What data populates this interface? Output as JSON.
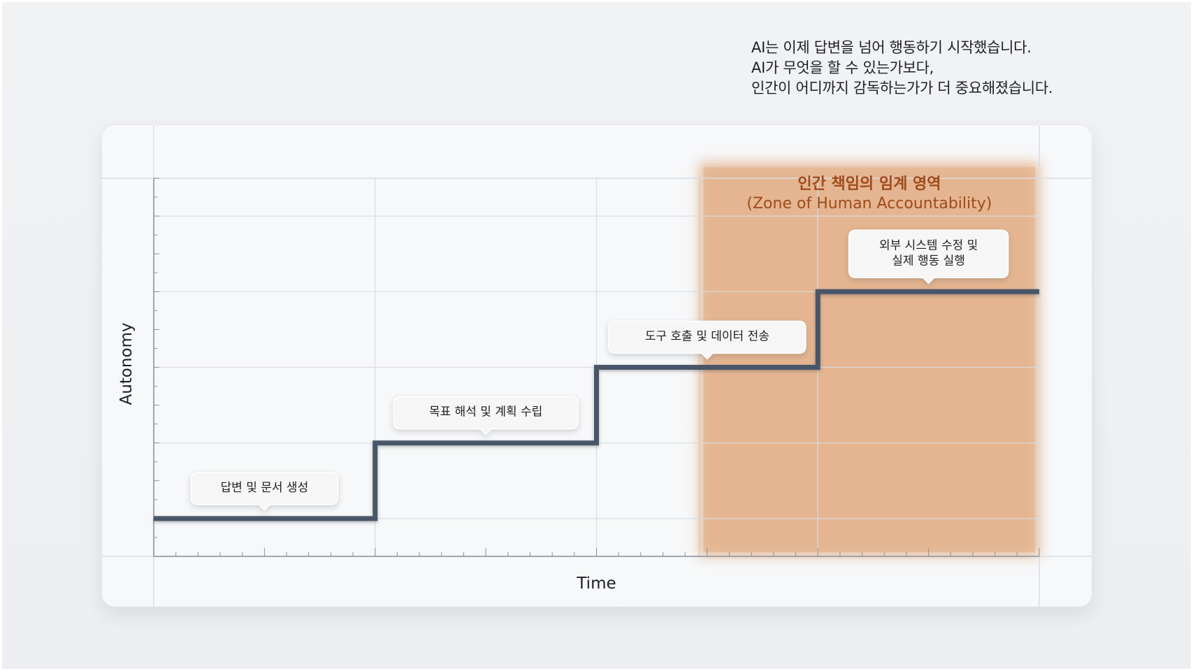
{
  "intro": {
    "lines": [
      "AI는 이제 답변을 넘어 행동하기 시작했습니다.",
      "AI가 무엇을 할 수 있는가보다,",
      "인간이 어디까지 감독하는가가 더 중요해졌습니다."
    ]
  },
  "colors": {
    "line": "#4a5568",
    "zone_fill": "#e3b28c",
    "zone_title": "#a04a1c",
    "grid": "#d9dce1",
    "text": "#1e1f22"
  },
  "chart_data": {
    "type": "line",
    "step": true,
    "xlabel": "Time",
    "ylabel": "Autonomy",
    "xlim": [
      0,
      8
    ],
    "ylim": [
      0,
      10
    ],
    "grid": true,
    "x": [
      0,
      2,
      2,
      4,
      4,
      6,
      6,
      8
    ],
    "y": [
      1,
      1,
      3,
      3,
      5,
      5,
      7,
      7
    ],
    "zone": {
      "x_start": 4.93,
      "x_end": 8,
      "title_line1": "인간 책임의 임계 영역",
      "title_line2": "(Zone of Human Accountability)"
    },
    "annotations": [
      {
        "text": [
          "답변 및 문서 생성"
        ],
        "x": 1.0,
        "y": 1
      },
      {
        "text": [
          "목표 해석 및 계획 수립"
        ],
        "x": 3.0,
        "y": 3
      },
      {
        "text": [
          "도구 호출 및 데이터 전송"
        ],
        "x": 5.0,
        "y": 5
      },
      {
        "text": [
          "외부 시스템 수정 및",
          "실제 행동 실행"
        ],
        "x": 7.0,
        "y": 7
      }
    ]
  }
}
